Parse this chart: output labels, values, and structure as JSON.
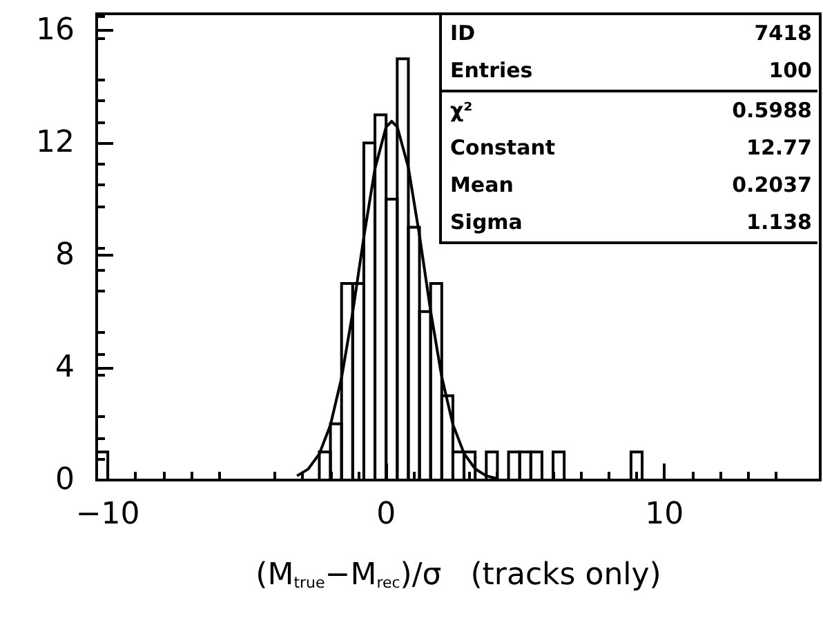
{
  "chart_data": {
    "type": "histogram",
    "xlabel": "(M$_{true}$−M$_{rec}$)/σ   (tracks only)",
    "bins": [
      -10.4,
      -10,
      -9.6,
      -9.2,
      -8.8,
      -8.4,
      -8,
      -7.6,
      -7.2,
      -6.8,
      -6.4,
      -6,
      -5.6,
      -5.2,
      -4.8,
      -4.4,
      -4,
      -3.6,
      -3.2,
      -2.8,
      -2.4,
      -2,
      -1.6,
      -1.2,
      -0.8,
      -0.4,
      0,
      0.4,
      0.8,
      1.2,
      1.6,
      2,
      2.4,
      2.8,
      3.2,
      3.6,
      4,
      4.4,
      4.8,
      5.2,
      5.6,
      6,
      6.4,
      6.8,
      7.2,
      7.6,
      8,
      8.4,
      8.8,
      9.2
    ],
    "values": [
      1,
      0,
      0,
      0,
      0,
      0,
      0,
      0,
      0,
      0,
      0,
      0,
      0,
      0,
      0,
      0,
      0,
      0,
      0,
      0,
      1,
      2,
      7,
      7,
      12,
      13,
      10,
      15,
      9,
      6,
      7,
      3,
      1,
      1,
      0,
      1,
      0,
      1,
      1,
      1,
      0,
      1,
      0,
      0,
      0,
      0,
      0,
      0,
      1
    ],
    "color": "#000000",
    "series": [
      {
        "type": "line",
        "color": "#000000",
        "x": [
          -3.2,
          -2.8,
          -2.4,
          -2,
          -1.6,
          -1.2,
          -0.8,
          -0.4,
          0,
          0.2,
          0.4,
          0.8,
          1.2,
          1.6,
          2,
          2.4,
          2.8,
          3.2,
          3.6,
          4
        ],
        "values": [
          0.15,
          0.39,
          0.93,
          1.96,
          3.64,
          5.97,
          8.65,
          11.09,
          12.57,
          12.77,
          12.58,
          11.13,
          8.71,
          6.02,
          3.67,
          1.98,
          0.95,
          0.4,
          0.15,
          0.05
        ]
      }
    ],
    "xlim": [
      -10.4,
      15.6
    ],
    "xticks": [
      -10,
      0,
      10
    ],
    "ylim": [
      0,
      16.6
    ],
    "yticks": [
      0,
      4,
      8,
      12,
      16
    ],
    "marker": "none",
    "line_style": "solid",
    "annotations": [
      "ID 7418",
      "Entries 100",
      "χ² 0.5988",
      "Constant 12.77",
      "Mean 0.2037",
      "Sigma 1.138"
    ]
  }
}
